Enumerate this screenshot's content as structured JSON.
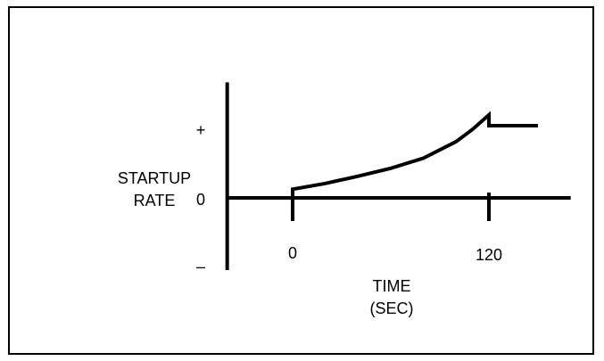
{
  "chart_data": {
    "type": "line",
    "title": "",
    "ylabel": [
      "STARTUP",
      "RATE"
    ],
    "xlabel": [
      "TIME",
      "(SEC)"
    ],
    "y_ticks": [
      "+",
      "0",
      "–"
    ],
    "x_ticks": [
      {
        "value": 0,
        "label": "0"
      },
      {
        "value": 120,
        "label": "120"
      }
    ],
    "xlim": [
      -40,
      170
    ],
    "ylim": [
      -1,
      1.6
    ],
    "grid": false,
    "legend": "none",
    "series": [
      {
        "x": [
          0,
          0,
          20,
          40,
          60,
          80,
          100,
          110,
          120,
          120,
          150
        ],
        "y": [
          0,
          0.12,
          0.2,
          0.3,
          0.41,
          0.55,
          0.78,
          0.95,
          1.15,
          1.0,
          1.0
        ]
      }
    ],
    "colors": {
      "line": "#000000",
      "axis": "#000000",
      "background": "#ffffff"
    }
  }
}
